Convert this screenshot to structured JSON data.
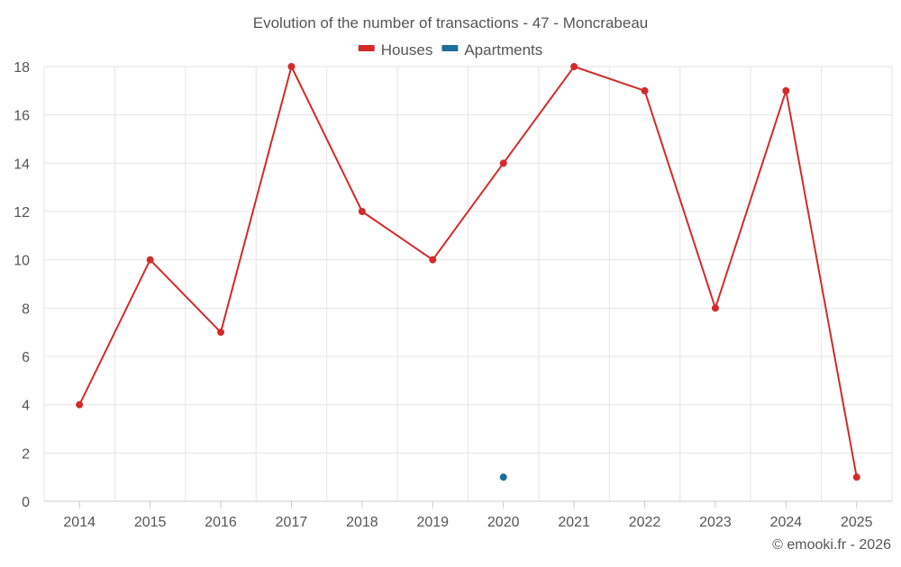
{
  "chart_data": {
    "type": "line",
    "title": "Evolution of the number of transactions - 47 - Moncrabeau",
    "xlabel": "",
    "ylabel": "",
    "categories": [
      "2014",
      "2015",
      "2016",
      "2017",
      "2018",
      "2019",
      "2020",
      "2021",
      "2022",
      "2023",
      "2024",
      "2025"
    ],
    "ylim": [
      0,
      18
    ],
    "yticks": [
      0,
      2,
      4,
      6,
      8,
      10,
      12,
      14,
      16,
      18
    ],
    "grid": true,
    "legend_position": "top-center",
    "series": [
      {
        "name": "Houses",
        "color": "#d42a2a",
        "values": [
          4,
          10,
          7,
          18,
          12,
          10,
          14,
          18,
          17,
          8,
          17,
          1
        ]
      },
      {
        "name": "Apartments",
        "color": "#1a6f9c",
        "values": [
          null,
          null,
          null,
          null,
          null,
          null,
          1,
          null,
          null,
          null,
          null,
          null
        ]
      }
    ],
    "credit": "© emooki.fr - 2026"
  }
}
